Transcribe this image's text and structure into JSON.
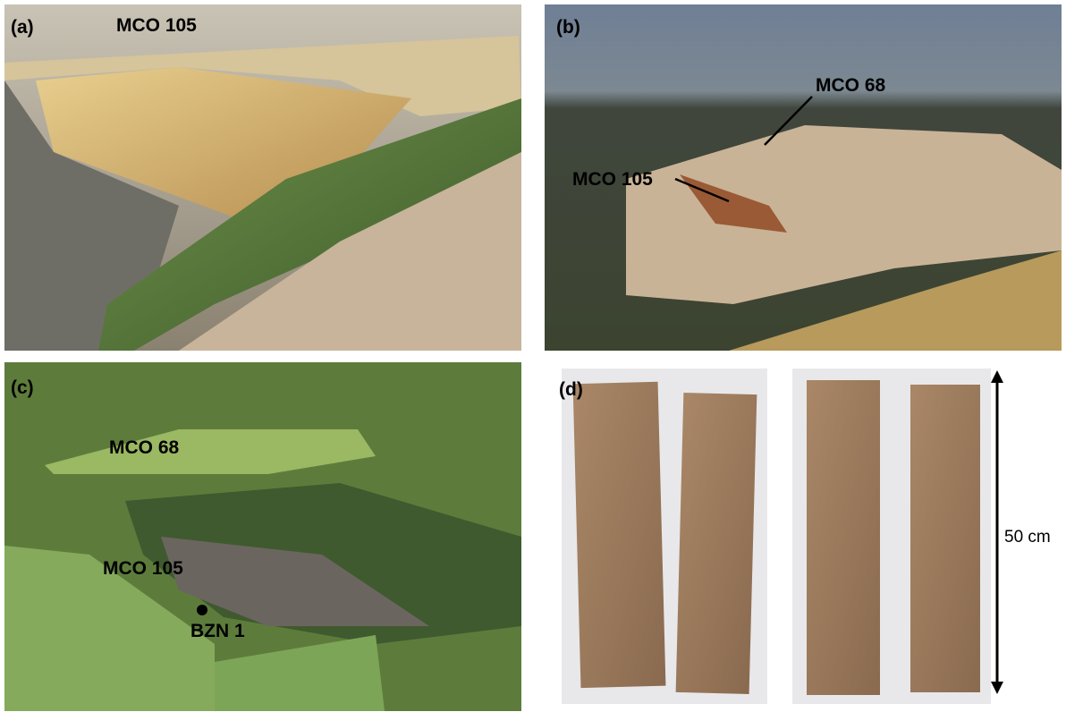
{
  "panels": [
    {
      "label": "(a)",
      "annotations": [
        "MCO 105"
      ]
    },
    {
      "label": "(b)",
      "annotations": [
        "MCO 68",
        "MCO 105"
      ]
    },
    {
      "label": "(c)",
      "annotations": [
        "MCO 68",
        "MCO 105",
        "BZN 1"
      ]
    },
    {
      "label": "(d)",
      "annotations": [
        "50 cm"
      ]
    }
  ]
}
